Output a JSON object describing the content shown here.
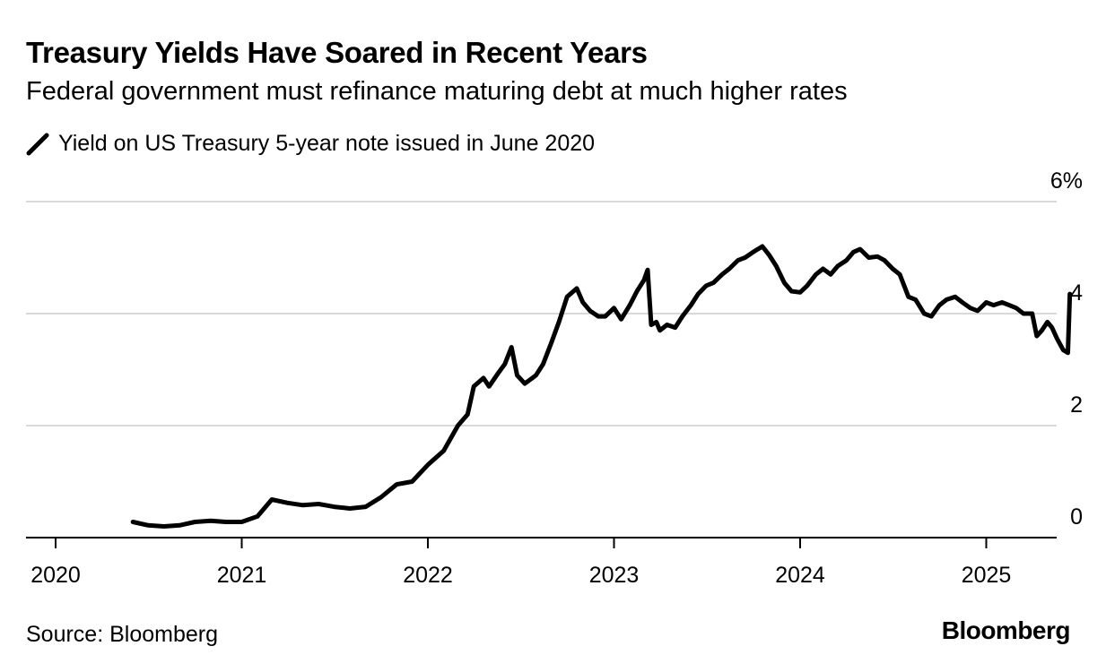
{
  "header": {
    "title": "Treasury Yields Have Soared in Recent Years",
    "subtitle": "Federal government must refinance maturing debt at much higher rates"
  },
  "footer": {
    "source": "Source: Bloomberg",
    "brand": "Bloomberg"
  },
  "colors": {
    "line": "#000000",
    "grid": "#d9d9d9",
    "axis": "#000000"
  },
  "chart_data": {
    "type": "line",
    "title": "Treasury Yields Have Soared in Recent Years",
    "subtitle": "Federal government must refinance maturing debt at much higher rates",
    "xlabel": "",
    "ylabel": "",
    "y_unit": "%",
    "ylim": [
      0,
      6
    ],
    "y_ticks": [
      0,
      2,
      4,
      6
    ],
    "y_tick_labels": [
      "0",
      "2",
      "4",
      "6%"
    ],
    "x_ticks": [
      "2020",
      "2021",
      "2022",
      "2023",
      "2024",
      "2025"
    ],
    "grid": true,
    "y_axis_position": "right",
    "legend_position": "top-left",
    "series": [
      {
        "name": "Yield on US Treasury 5-year note issued in June 2020",
        "x": [
          "2020-06-01",
          "2020-07-01",
          "2020-08-01",
          "2020-09-01",
          "2020-10-01",
          "2020-11-01",
          "2020-12-01",
          "2021-01-01",
          "2021-02-01",
          "2021-03-01",
          "2021-04-01",
          "2021-05-01",
          "2021-06-01",
          "2021-07-01",
          "2021-08-01",
          "2021-09-01",
          "2021-10-01",
          "2021-11-01",
          "2021-12-01",
          "2022-01-01",
          "2022-02-01",
          "2022-03-01",
          "2022-03-20",
          "2022-04-01",
          "2022-04-20",
          "2022-05-01",
          "2022-05-20",
          "2022-06-01",
          "2022-06-14",
          "2022-06-25",
          "2022-07-10",
          "2022-07-25",
          "2022-08-01",
          "2022-08-15",
          "2022-09-01",
          "2022-09-15",
          "2022-10-01",
          "2022-10-20",
          "2022-11-01",
          "2022-11-15",
          "2022-12-01",
          "2022-12-15",
          "2023-01-01",
          "2023-01-15",
          "2023-02-01",
          "2023-02-15",
          "2023-03-01",
          "2023-03-08",
          "2023-03-15",
          "2023-03-25",
          "2023-04-01",
          "2023-04-15",
          "2023-05-01",
          "2023-05-15",
          "2023-06-01",
          "2023-06-15",
          "2023-07-01",
          "2023-07-15",
          "2023-08-01",
          "2023-08-15",
          "2023-09-01",
          "2023-09-15",
          "2023-10-01",
          "2023-10-19",
          "2023-11-01",
          "2023-11-15",
          "2023-12-01",
          "2023-12-15",
          "2024-01-01",
          "2024-01-15",
          "2024-02-01",
          "2024-02-15",
          "2024-03-01",
          "2024-03-15",
          "2024-04-01",
          "2024-04-15",
          "2024-04-28",
          "2024-05-15",
          "2024-06-01",
          "2024-06-15",
          "2024-07-01",
          "2024-07-15",
          "2024-08-01",
          "2024-08-15",
          "2024-09-01",
          "2024-09-15",
          "2024-10-01",
          "2024-10-15",
          "2024-11-01",
          "2024-11-15",
          "2024-12-01",
          "2024-12-15",
          "2025-01-01",
          "2025-01-15",
          "2025-02-01",
          "2025-02-15",
          "2025-03-01",
          "2025-03-15",
          "2025-04-01",
          "2025-04-10",
          "2025-04-20",
          "2025-05-01",
          "2025-05-10",
          "2025-05-20",
          "2025-06-01",
          "2025-06-10",
          "2025-06-14"
        ],
        "values": [
          0.28,
          0.22,
          0.2,
          0.22,
          0.28,
          0.3,
          0.28,
          0.28,
          0.38,
          0.68,
          0.62,
          0.58,
          0.6,
          0.55,
          0.52,
          0.55,
          0.72,
          0.95,
          1.0,
          1.3,
          1.55,
          2.0,
          2.2,
          2.7,
          2.85,
          2.7,
          2.95,
          3.1,
          3.4,
          2.9,
          2.75,
          2.85,
          2.9,
          3.1,
          3.5,
          3.85,
          4.3,
          4.45,
          4.2,
          4.05,
          3.95,
          3.95,
          4.1,
          3.9,
          4.15,
          4.4,
          4.6,
          4.78,
          3.8,
          3.85,
          3.7,
          3.8,
          3.75,
          3.95,
          4.15,
          4.35,
          4.5,
          4.55,
          4.7,
          4.8,
          4.95,
          5.0,
          5.1,
          5.2,
          5.05,
          4.85,
          4.55,
          4.4,
          4.38,
          4.5,
          4.7,
          4.8,
          4.7,
          4.85,
          4.95,
          5.1,
          5.15,
          5.0,
          5.02,
          4.95,
          4.8,
          4.7,
          4.3,
          4.25,
          4.0,
          3.95,
          4.15,
          4.25,
          4.3,
          4.2,
          4.1,
          4.05,
          4.2,
          4.15,
          4.2,
          4.15,
          4.1,
          4.0,
          4.0,
          3.6,
          3.7,
          3.85,
          3.75,
          3.55,
          3.35,
          3.3,
          4.35
        ]
      }
    ]
  }
}
